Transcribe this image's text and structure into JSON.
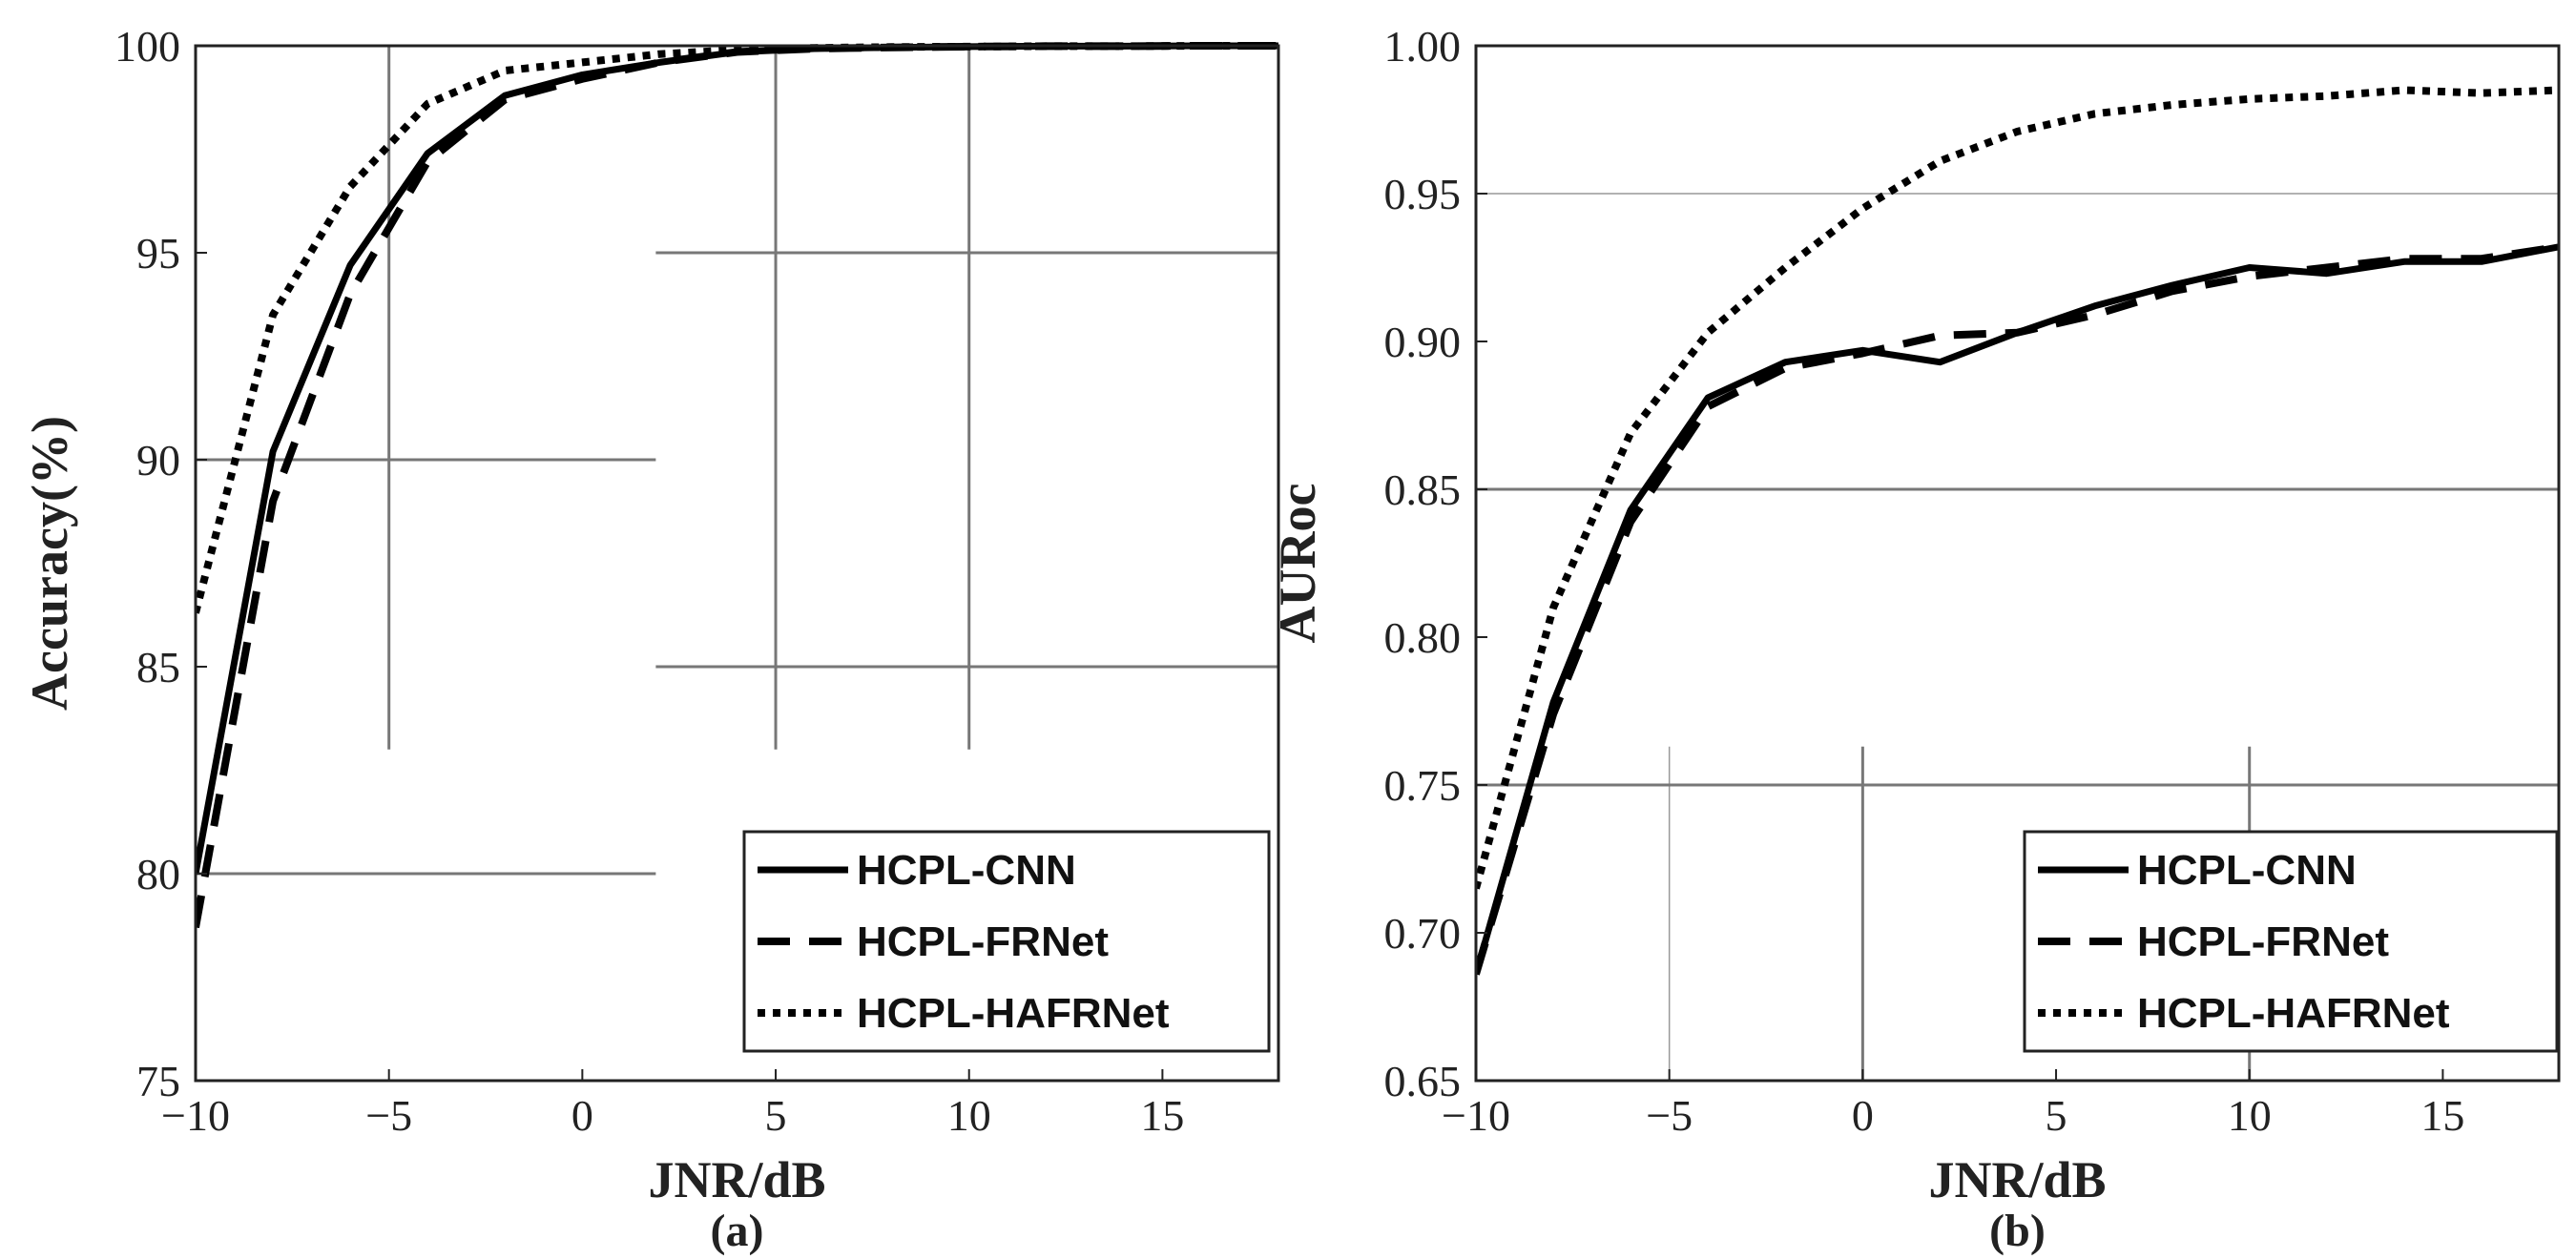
{
  "chart_data": [
    {
      "type": "line",
      "panel_label": "(a)",
      "xlabel": "JNR/dB",
      "ylabel": "Accuracy(%)",
      "xlim": [
        -10,
        18
      ],
      "ylim": [
        75,
        100
      ],
      "xticks": [
        -10,
        -5,
        0,
        5,
        10,
        15
      ],
      "xtick_labels": [
        "−10",
        "−5",
        "0",
        "5",
        "10",
        "15"
      ],
      "yticks": [
        75,
        80,
        85,
        90,
        95,
        100
      ],
      "ytick_labels": [
        "75",
        "80",
        "85",
        "90",
        "95",
        "100"
      ],
      "grid": true,
      "legend_position": "bottom-right",
      "series": [
        {
          "name": "HCPL-CNN",
          "style": "solid",
          "x": [
            -10,
            -8,
            -6,
            -4,
            -2,
            0,
            2,
            4,
            6,
            8,
            10,
            12,
            14,
            16,
            18
          ],
          "y": [
            80.0,
            90.2,
            94.7,
            97.4,
            98.8,
            99.3,
            99.6,
            99.85,
            99.93,
            99.96,
            99.98,
            99.99,
            99.99,
            100.0,
            100.0
          ]
        },
        {
          "name": "HCPL-FRNet",
          "style": "dashed",
          "x": [
            -10,
            -8,
            -6,
            -4,
            -2,
            0,
            2,
            4,
            6,
            8,
            10,
            12,
            14,
            16,
            18
          ],
          "y": [
            78.7,
            89.0,
            94.0,
            97.2,
            98.7,
            99.2,
            99.6,
            99.85,
            99.93,
            99.96,
            99.98,
            99.99,
            99.99,
            100.0,
            100.0
          ]
        },
        {
          "name": "HCPL-HAFRNet",
          "style": "dotted",
          "x": [
            -10,
            -8,
            -6,
            -4,
            -2,
            0,
            2,
            4,
            6,
            8,
            10,
            12,
            14,
            16,
            18
          ],
          "y": [
            86.3,
            93.5,
            96.6,
            98.6,
            99.4,
            99.6,
            99.8,
            99.9,
            99.95,
            99.97,
            99.98,
            99.99,
            99.99,
            100.0,
            100.0
          ]
        }
      ]
    },
    {
      "type": "line",
      "panel_label": "(b)",
      "xlabel": "JNR/dB",
      "ylabel": "AURoc",
      "xlim": [
        -10,
        18
      ],
      "ylim": [
        0.65,
        1.0
      ],
      "xticks": [
        -10,
        -5,
        0,
        5,
        10,
        15
      ],
      "xtick_labels": [
        "−10",
        "−5",
        "0",
        "5",
        "10",
        "15"
      ],
      "yticks": [
        0.65,
        0.7,
        0.75,
        0.8,
        0.85,
        0.9,
        0.95,
        1.0
      ],
      "ytick_labels": [
        "0.65",
        "0.70",
        "0.75",
        "0.80",
        "0.85",
        "0.90",
        "0.95",
        "1.00"
      ],
      "grid": true,
      "legend_position": "bottom-right",
      "series": [
        {
          "name": "HCPL-CNN",
          "style": "solid",
          "x": [
            -10,
            -8,
            -6,
            -4,
            -2,
            0,
            2,
            4,
            6,
            8,
            10,
            12,
            14,
            16,
            18
          ],
          "y": [
            0.686,
            0.778,
            0.843,
            0.881,
            0.893,
            0.897,
            0.893,
            0.903,
            0.912,
            0.919,
            0.925,
            0.923,
            0.927,
            0.927,
            0.932
          ]
        },
        {
          "name": "HCPL-FRNet",
          "style": "dashed",
          "x": [
            -10,
            -8,
            -6,
            -4,
            -2,
            0,
            2,
            4,
            6,
            8,
            10,
            12,
            14,
            16,
            18
          ],
          "y": [
            0.686,
            0.774,
            0.839,
            0.878,
            0.891,
            0.896,
            0.902,
            0.903,
            0.909,
            0.917,
            0.922,
            0.925,
            0.928,
            0.928,
            0.932
          ]
        },
        {
          "name": "HCPL-HAFRNet",
          "style": "dotted",
          "x": [
            -10,
            -8,
            -6,
            -4,
            -2,
            0,
            2,
            4,
            6,
            8,
            10,
            12,
            14,
            16,
            18
          ],
          "y": [
            0.715,
            0.81,
            0.869,
            0.903,
            0.925,
            0.945,
            0.961,
            0.971,
            0.977,
            0.98,
            0.982,
            0.983,
            0.985,
            0.984,
            0.985
          ]
        }
      ]
    }
  ]
}
